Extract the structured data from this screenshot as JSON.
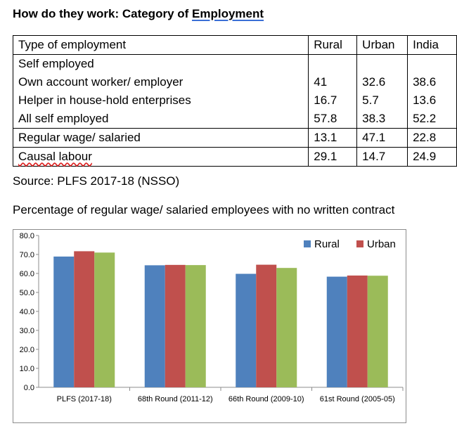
{
  "title": {
    "prefix": "How do they work: Category of ",
    "emphasis": "Employment"
  },
  "table": {
    "headers": [
      "Type of employment",
      "Rural",
      "Urban",
      "India"
    ],
    "group_label": "Self employed",
    "rows": [
      [
        "Own account worker/ employer",
        "41",
        "32.6",
        "38.6"
      ],
      [
        "Helper in house-hold enterprises",
        "16.7",
        "5.7",
        "13.6"
      ],
      [
        "All self employed",
        "57.8",
        "38.3",
        "52.2"
      ],
      [
        "Regular wage/ salaried",
        "13.1",
        "47.1",
        "22.8"
      ],
      [
        "Causal labour",
        "29.1",
        "14.7",
        "24.9"
      ]
    ]
  },
  "source": "Source: PLFS 2017-18 (NSSO)",
  "chart_title": "Percentage of regular wage/ salaried employees with no written contract",
  "colors": {
    "rural": "#4F81BD",
    "urban": "#C0504D",
    "india": "#9BBB59"
  },
  "chart_data": {
    "type": "bar",
    "title": "Percentage of regular wage/ salaried employees with no written contract",
    "categories": [
      "PLFS (2017-18)",
      "68th Round (2011-12)",
      "66th Round (2009-10)",
      "61st Round (2005-05)"
    ],
    "series": [
      {
        "name": "Rural",
        "values": [
          68.9,
          64.3,
          59.8,
          58.3
        ]
      },
      {
        "name": "Urban",
        "values": [
          71.7,
          64.5,
          64.6,
          58.9
        ]
      },
      {
        "name": "",
        "values": [
          71.0,
          64.4,
          62.9,
          58.8
        ]
      }
    ],
    "yticks": [
      "0.0",
      "10.0",
      "20.0",
      "30.0",
      "40.0",
      "50.0",
      "60.0",
      "70.0",
      "80.0"
    ],
    "ylim": [
      0,
      80
    ],
    "legend": [
      "Rural",
      "Urban"
    ],
    "legend_position": "top-right",
    "xlabel": "",
    "ylabel": ""
  }
}
